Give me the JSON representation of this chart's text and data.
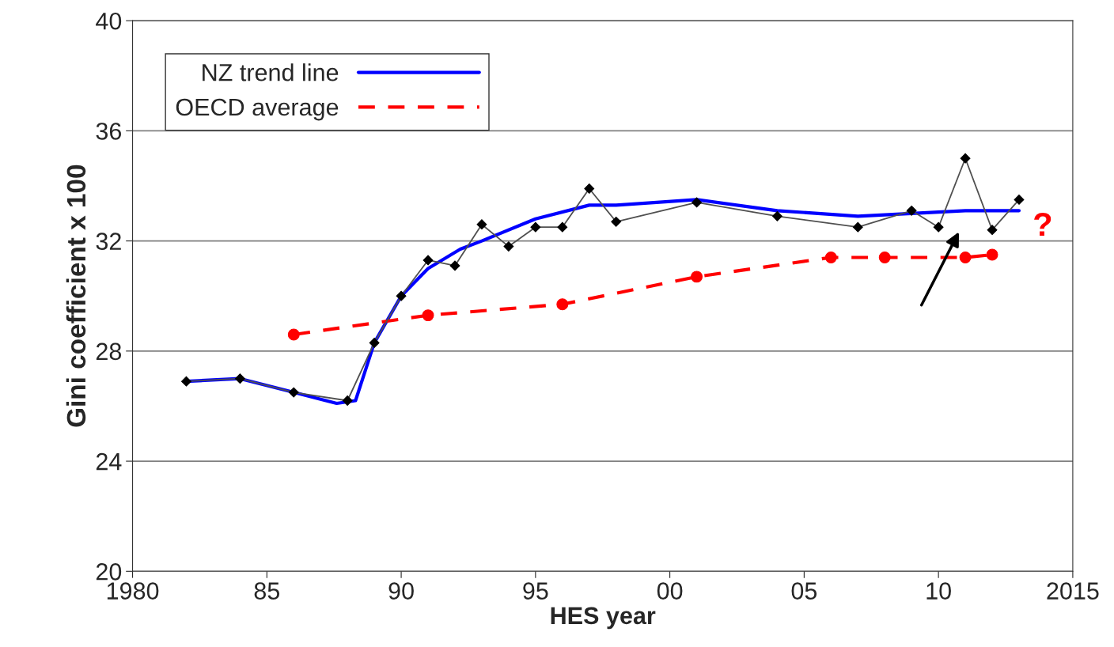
{
  "chart_data": {
    "type": "line",
    "xlabel": "HES year",
    "ylabel": "Gini coefficient x 100",
    "xlim": [
      1980,
      2015
    ],
    "xticks": [
      1980,
      {
        "value": 1985,
        "label": "85"
      },
      {
        "value": 1990,
        "label": "90"
      },
      {
        "value": 1995,
        "label": "95"
      },
      {
        "value": 2000,
        "label": "00"
      },
      {
        "value": 2005,
        "label": "05"
      },
      {
        "value": 2010,
        "label": "10"
      },
      2015
    ],
    "ylim": [
      20,
      40
    ],
    "yticks": [
      20,
      24,
      28,
      32,
      36,
      40
    ],
    "grid": "y",
    "legend": "top left",
    "series": [
      {
        "color": "#505050",
        "marker": "diamond",
        "line_style": "solid",
        "x": [
          1982,
          1984,
          1986,
          1988,
          1989,
          1990,
          1991,
          1992,
          1993,
          1994,
          1995,
          1996,
          1997,
          1998,
          2001,
          2004,
          2007,
          2009,
          2010,
          2011,
          2012,
          2013
        ],
        "values": [
          26.9,
          27.0,
          26.5,
          26.2,
          28.3,
          30.0,
          31.3,
          31.1,
          32.6,
          31.8,
          32.5,
          32.5,
          33.9,
          32.7,
          33.4,
          32.9,
          32.5,
          33.1,
          32.5,
          35.0,
          32.4,
          33.5
        ]
      },
      {
        "name": "NZ trend line",
        "color": "#0000ff",
        "marker": "none",
        "line_style": "solid",
        "x": [
          1982,
          1984,
          1986,
          1987.6,
          1988.3,
          1989,
          1990,
          1991,
          1992.2,
          1993,
          1995,
          1997,
          1998,
          2001,
          2004,
          2007,
          2009,
          2011,
          2013
        ],
        "values": [
          26.9,
          27.0,
          26.5,
          26.1,
          26.2,
          28.3,
          30.0,
          31.0,
          31.7,
          32.0,
          32.8,
          33.3,
          33.3,
          33.5,
          33.1,
          32.9,
          33.0,
          33.1,
          33.1
        ]
      },
      {
        "name": "OECD average",
        "color": "#ff0000",
        "marker": "circle",
        "line_style": "dashed",
        "x": [
          1986,
          1991,
          1996,
          2001,
          2006,
          2008,
          2011,
          2012
        ],
        "values": [
          28.6,
          29.3,
          29.7,
          30.7,
          31.4,
          31.4,
          31.4,
          31.5
        ]
      }
    ],
    "annotations": [
      "?"
    ]
  }
}
